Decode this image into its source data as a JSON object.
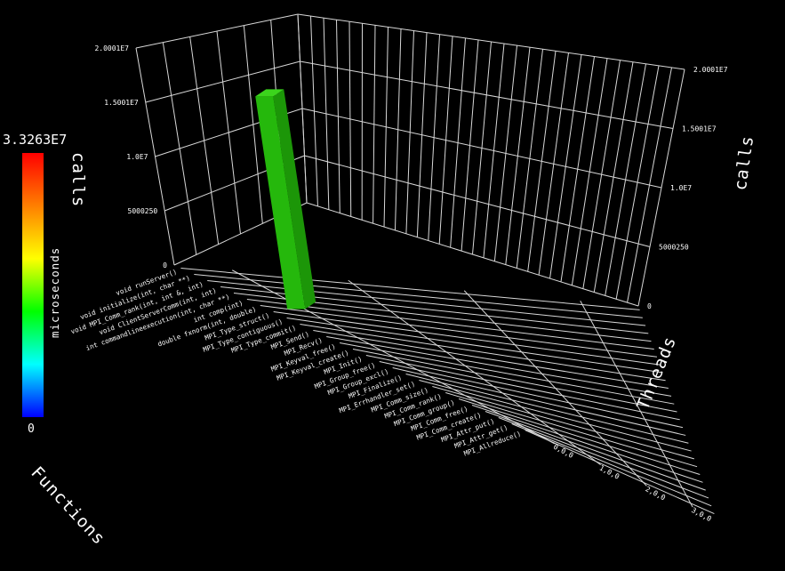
{
  "chart_data": {
    "type": "bar",
    "title": "",
    "metric_height": "calls",
    "metric_color": "microseconds",
    "axes": {
      "x_title": "Functions",
      "y_title": "Threads",
      "z_title": "calls",
      "z_ticks": [
        "0",
        "5000250",
        "1.0E7",
        "1.5001E7",
        "2.0001E7"
      ],
      "z_range": [
        0,
        20001000
      ]
    },
    "functions": [
      "void runServer()",
      "void initialize(int, char **)",
      "void MPI_Comm_rank(int, int &, int)",
      "void ClientServerComm(int, int)",
      "int commandlineexecution(int, char **)",
      "int comp(int)",
      "double fxnorm(int, double)",
      "MPI_Type_struct()",
      "MPI_Type_contiguous()",
      "MPI_Type_commit()",
      "MPI_Send()",
      "MPI_Recv()",
      "MPI_Keyval_free()",
      "MPI_Keyval_create()",
      "MPI_Init()",
      "MPI_Group_free()",
      "MPI_Group_excl()",
      "MPI_Finalize()",
      "MPI_Errhandler_set()",
      "MPI_Comm_size()",
      "MPI_Comm_rank()",
      "MPI_Comm_group()",
      "MPI_Comm_free()",
      "MPI_Comm_create()",
      "MPI_Attr_put()",
      "MPI_Attr_get()",
      "MPI_Allreduce()"
    ],
    "threads": [
      "0,0,0",
      "1,0,0",
      "2,0,0",
      "3,0,0"
    ],
    "bars": [
      {
        "function_index": 5,
        "thread_index": 0,
        "calls": 19600000,
        "color_value": 14000000
      }
    ],
    "color_scale": {
      "title": "microseconds",
      "min_label": "0",
      "max_label": "3.3263E7",
      "min": 0,
      "max": 33263000,
      "stops": [
        "#ff0000",
        "#ff7f00",
        "#ffff00",
        "#00ff00",
        "#00ffff",
        "#0000ff"
      ]
    },
    "bar_colors": {
      "front": "#25b80c",
      "side": "#1c9608",
      "top": "#3bd41c"
    }
  }
}
